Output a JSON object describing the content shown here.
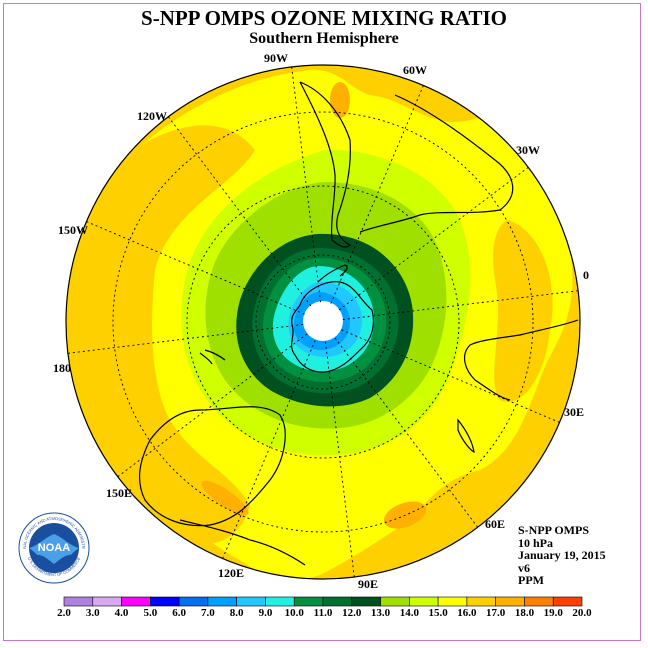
{
  "title": "S-NPP OMPS OZONE MIXING RATIO",
  "subtitle": "Southern Hemisphere",
  "longitude_labels": [
    "90W",
    "60W",
    "30W",
    "0",
    "30E",
    "60E",
    "90E",
    "120E",
    "150E",
    "180",
    "150W",
    "120W"
  ],
  "info": {
    "instrument": "S-NPP OMPS",
    "pressure": "10 hPa",
    "date": "January 19, 2015",
    "version": "v6",
    "units": "PPM"
  },
  "logo": {
    "text": "NOAA",
    "ring_text": "NATIONAL OCEANIC AND ATMOSPHERIC ADMINISTRATION",
    "ring_text_bottom": "U.S. DEPARTMENT OF COMMERCE"
  },
  "colorbar": {
    "ticks": [
      "2.0",
      "3.0",
      "4.0",
      "5.0",
      "6.0",
      "7.0",
      "8.0",
      "9.0",
      "10.0",
      "11.0",
      "12.0",
      "13.0",
      "14.0",
      "15.0",
      "16.0",
      "17.0",
      "18.0",
      "19.0",
      "20.0"
    ],
    "colors": [
      "#b080e0",
      "#d8a8f0",
      "#ff00ff",
      "#0000ff",
      "#0070f0",
      "#00a0ff",
      "#20c8ff",
      "#20f0e0",
      "#009040",
      "#007030",
      "#005020",
      "#a0e000",
      "#d0ff00",
      "#ffff00",
      "#ffd000",
      "#ffb000",
      "#ff8000",
      "#ff4000",
      "#ff0000",
      "#8b5030"
    ]
  },
  "map": {
    "projection": "south-polar-stereographic",
    "field_colors": {
      "base": "#ffd000",
      "band_15": "#ffff00",
      "band_14": "#d0ff00",
      "band_13": "#a0e000",
      "band_12": "#005020",
      "band_11": "#007030",
      "band_10": "#009040",
      "band_9": "#20f0e0",
      "band_8": "#20c8ff",
      "band_7": "#00a0ff",
      "patch_17": "#ffb000",
      "pole_missing": "#ffffff"
    }
  }
}
